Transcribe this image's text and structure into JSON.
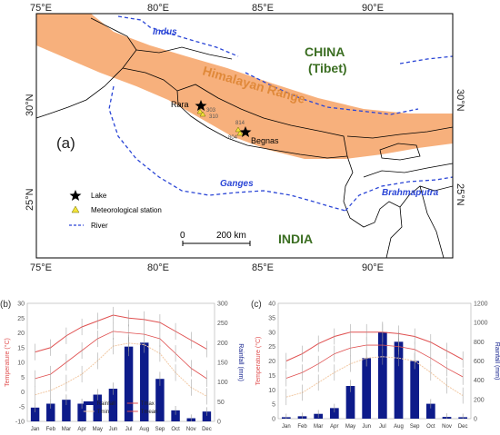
{
  "map": {
    "lon_ticks": [
      "75°E",
      "80°E",
      "85°E",
      "90°E"
    ],
    "lat_ticks": [
      "30°N",
      "25°N"
    ],
    "labels": {
      "indus": "Indus",
      "china": "CHINA",
      "tibet": "(Tibet)",
      "himalayan_range": "Himalayan Range",
      "rara": "Rara",
      "begnas": "Begnas",
      "station_303": "303",
      "station_310": "310",
      "station_814": "814",
      "station_804": "804",
      "panel": "(a)",
      "ganges": "Ganges",
      "brahmaputra": "Brahmaputra",
      "india": "INDIA"
    },
    "legend": {
      "lake": "Lake",
      "station": "Meteorological station",
      "river": "River"
    },
    "scalebar": {
      "zero": "0",
      "distance": "200 km"
    },
    "colors": {
      "range": "#f7b07c",
      "river": "#2a45d6",
      "label_green": "#3b6e22",
      "label_blue": "#2a45d6",
      "station": "#f3e33a",
      "ocean": "#ffffff",
      "range_label": "#e0893a"
    }
  },
  "charts": [
    {
      "panel": "(b)",
      "left_axis_label": "Temperature (°C)",
      "right_axis_label": "Rainfall (mm)",
      "left_ticks": [
        "30",
        "25",
        "20",
        "15",
        "10",
        "5",
        "0",
        "-5",
        "-10"
      ],
      "right_ticks": [
        "300",
        "250",
        "200",
        "150",
        "100",
        "50",
        "0"
      ],
      "legend": [
        "Rainfall",
        "Tmax",
        "Tmin",
        "Tmean"
      ],
      "chart_data": {
        "type": "bar",
        "categories": [
          "Jan",
          "Feb",
          "Mar",
          "Apr",
          "May",
          "Jun",
          "Jul",
          "Aug",
          "Sep",
          "Oct",
          "Nov",
          "Dec"
        ],
        "ylim_left": [
          -10,
          30
        ],
        "ylim_right": [
          0,
          300
        ],
        "series": [
          {
            "name": "Rainfall",
            "axis": "right",
            "values": [
              35,
              45,
              55,
              45,
              68,
              83,
              190,
              200,
              108,
              28,
              8,
              25
            ]
          },
          {
            "name": "Tmax",
            "axis": "left",
            "values": [
              13.5,
              15,
              19,
              22,
              24,
              26,
              25,
              24.5,
              23.5,
              20.5,
              17.5,
              14.5
            ]
          },
          {
            "name": "Tmin",
            "axis": "left",
            "values": [
              -1,
              0.5,
              3,
              6,
              10.5,
              15.5,
              16.5,
              16,
              13,
              6.5,
              1.5,
              -1.5
            ]
          },
          {
            "name": "Tmean",
            "axis": "left",
            "values": [
              4.5,
              6,
              10,
              14,
              18,
              20.5,
              20,
              19.5,
              18,
              13,
              8,
              4.5
            ]
          }
        ],
        "colors": {
          "Rainfall": "#0d1b8a",
          "Tmax": "#e05050",
          "Tmin": "#f2c9a4",
          "Tmean": "#e05050"
        }
      }
    },
    {
      "panel": "(c)",
      "left_axis_label": "Temperature (°C)",
      "right_axis_label": "Rainfall (mm)",
      "left_ticks": [
        "40",
        "35",
        "30",
        "25",
        "20",
        "15",
        "10",
        "5",
        "0"
      ],
      "right_ticks": [
        "1200",
        "1000",
        "800",
        "600",
        "400",
        "200",
        "0"
      ],
      "legend": [],
      "chart_data": {
        "type": "bar",
        "categories": [
          "Jan",
          "Feb",
          "Mar",
          "Apr",
          "May",
          "Jun",
          "Jul",
          "Aug",
          "Sep",
          "Oct",
          "Nov",
          "Dec"
        ],
        "ylim_left": [
          0,
          40
        ],
        "ylim_right": [
          0,
          1200
        ],
        "series": [
          {
            "name": "Rainfall",
            "axis": "right",
            "values": [
              15,
              25,
              50,
              110,
              340,
              630,
              900,
              800,
              600,
              155,
              18,
              15
            ]
          },
          {
            "name": "Tmax",
            "axis": "left",
            "values": [
              20,
              22.5,
              26,
              28.5,
              30,
              30,
              30,
              29.5,
              28.5,
              26.5,
              23.5,
              20.5
            ]
          },
          {
            "name": "Tmin",
            "axis": "left",
            "values": [
              7.5,
              9,
              12.5,
              16,
              19,
              21,
              21.5,
              21,
              20,
              16,
              11.5,
              8
            ]
          },
          {
            "name": "Tmean",
            "axis": "left",
            "values": [
              14,
              16,
              19,
              22.5,
              24.5,
              25.5,
              25.5,
              25,
              24,
              21,
              17.5,
              14.5
            ]
          }
        ],
        "colors": {
          "Rainfall": "#0d1b8a",
          "Tmax": "#e05050",
          "Tmin": "#f2c9a4",
          "Tmean": "#e05050"
        }
      }
    }
  ]
}
